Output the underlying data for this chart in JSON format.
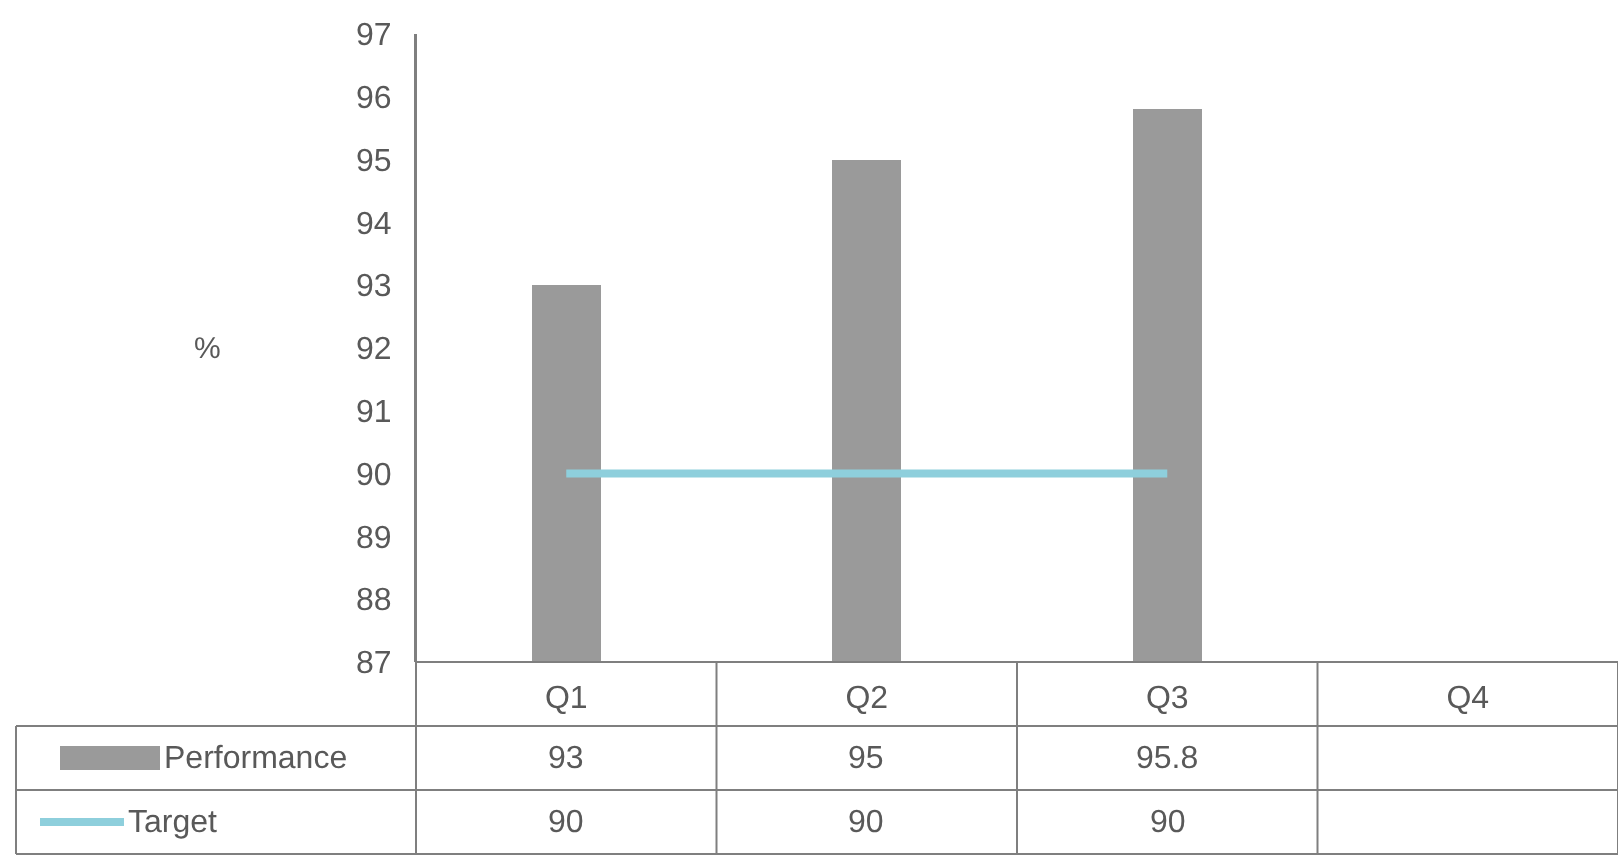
{
  "chart_data": {
    "type": "bar",
    "ylabel": "%",
    "categories": [
      "Q1",
      "Q2",
      "Q3",
      "Q4"
    ],
    "series": [
      {
        "name": "Performance",
        "color": "#9a9a9a",
        "values": [
          93,
          95,
          95.8,
          null
        ]
      },
      {
        "name": "Target",
        "type": "line",
        "color": "#8ecfdc",
        "values": [
          90,
          90,
          90,
          null
        ]
      }
    ],
    "ylim": [
      87,
      97
    ],
    "yticks": [
      87,
      88,
      89,
      90,
      91,
      92,
      93,
      94,
      95,
      96,
      97
    ],
    "grid": false,
    "legend": "bottom",
    "data_labels": true,
    "marker": "none"
  }
}
